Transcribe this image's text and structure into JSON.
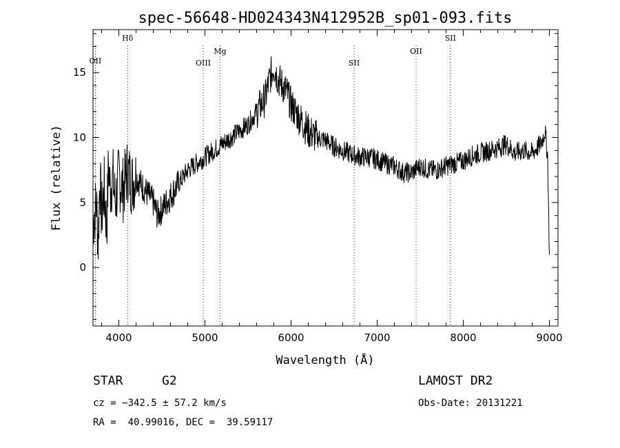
{
  "chart_data": {
    "type": "line",
    "title": "spec-56648-HD024343N412952B_sp01-093.fits",
    "xlabel": "Wavelength (Å)",
    "ylabel": "Flux (relative)",
    "xlim": [
      3700,
      9100
    ],
    "ylim": [
      -4.5,
      18.3
    ],
    "xticks": [
      4000,
      5000,
      6000,
      7000,
      8000,
      9000
    ],
    "yticks": [
      0,
      5,
      10,
      15
    ],
    "grid": false,
    "spectral_lines": [
      {
        "label": "OII",
        "x": 3727
      },
      {
        "label": "Hδ",
        "x": 4102
      },
      {
        "label": "OIII",
        "x": 4980
      },
      {
        "label": "Mg",
        "x": 5175
      },
      {
        "label": "SII",
        "x": 6732
      },
      {
        "label": "OII",
        "x": 7452
      },
      {
        "label": "SII",
        "x": 7850
      }
    ],
    "series": [
      {
        "x": [
          3700,
          3740,
          3760,
          3780,
          3800,
          3830,
          3860,
          3880,
          3900,
          3930,
          3960,
          4000,
          4050,
          4100,
          4150,
          4200,
          4250,
          4300,
          4350,
          4400,
          4450,
          4500,
          4550,
          4600,
          4700,
          4800,
          4900,
          5000,
          5100,
          5200,
          5300,
          5400,
          5500,
          5600,
          5700,
          5750,
          5800,
          5850,
          5900,
          5950,
          6000,
          6100,
          6200,
          6300,
          6400,
          6500,
          6600,
          6700,
          6800,
          6900,
          7000,
          7100,
          7200,
          7300,
          7400,
          7500,
          7600,
          7700,
          7800,
          7900,
          8000,
          8100,
          8200,
          8300,
          8400,
          8500,
          8600,
          8700,
          8800,
          8900,
          8950,
          8980,
          9000
        ],
        "y": [
          3.5,
          5.0,
          2.0,
          7.0,
          4.0,
          6.0,
          3.0,
          8.0,
          6.0,
          7.0,
          5.0,
          7.0,
          6.0,
          7.5,
          6.5,
          7.0,
          6.5,
          6.0,
          5.5,
          5.0,
          4.0,
          4.5,
          5.0,
          5.5,
          6.5,
          7.5,
          8.0,
          8.5,
          9.0,
          9.5,
          10.0,
          10.5,
          11.0,
          12.0,
          13.0,
          14.5,
          15.5,
          14.5,
          14.0,
          13.5,
          12.5,
          11.5,
          10.5,
          10.0,
          9.8,
          9.3,
          9.0,
          8.7,
          8.5,
          8.5,
          8.3,
          8.0,
          7.8,
          7.3,
          7.3,
          7.8,
          7.5,
          7.5,
          7.8,
          8.0,
          8.2,
          8.6,
          8.8,
          9.0,
          9.2,
          9.5,
          8.8,
          9.0,
          8.8,
          9.5,
          10.5,
          8.5,
          1.0
        ]
      }
    ]
  },
  "info": {
    "object_class": "STAR",
    "subclass": "G2",
    "survey": "LAMOST DR2",
    "cz": "cz = −342.5 ± 57.2 km/s",
    "obs_date": "Obs-Date: 20131221",
    "coords": "RA =  40.99016, DEC =  39.59117"
  }
}
